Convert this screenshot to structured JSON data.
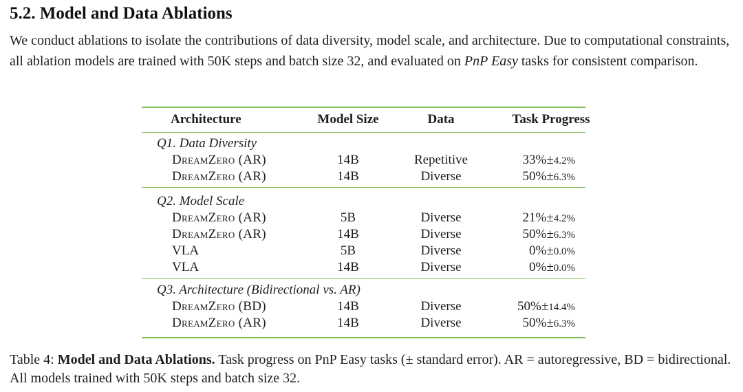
{
  "section": {
    "heading": "5.2. Model and Data Ablations"
  },
  "intro": {
    "text_before": "We conduct ablations to isolate the contributions of data diversity, model scale, and architecture. Due to computational constraints, all ablation models are trained with 50K steps and batch size 32, and evaluated on ",
    "italic_term": "PnP Easy",
    "text_after": " tasks for consistent comparison."
  },
  "table": {
    "headers": {
      "architecture": "Architecture",
      "model_size": "Model Size",
      "data": "Data",
      "task_progress": "Task Progress"
    },
    "groups": [
      {
        "title": "Q1. Data Diversity",
        "rows": [
          {
            "arch": "DreamZero (AR)",
            "size": "14B",
            "data": "Repetitive",
            "progress": "33%",
            "error": "4.2%"
          },
          {
            "arch": "DreamZero (AR)",
            "size": "14B",
            "data": "Diverse",
            "progress": "50%",
            "error": "6.3%"
          }
        ]
      },
      {
        "title": "Q2. Model Scale",
        "rows": [
          {
            "arch": "DreamZero (AR)",
            "size": "5B",
            "data": "Diverse",
            "progress": "21%",
            "error": "4.2%"
          },
          {
            "arch": "DreamZero (AR)",
            "size": "14B",
            "data": "Diverse",
            "progress": "50%",
            "error": "6.3%"
          },
          {
            "arch": "VLA",
            "size": "5B",
            "data": "Diverse",
            "progress": "0%",
            "error": "0.0%"
          },
          {
            "arch": "VLA",
            "size": "14B",
            "data": "Diverse",
            "progress": "0%",
            "error": "0.0%"
          }
        ]
      },
      {
        "title": "Q3. Architecture (Bidirectional vs. AR)",
        "rows": [
          {
            "arch": "DreamZero (BD)",
            "size": "14B",
            "data": "Diverse",
            "progress": "50%",
            "error": "14.4%"
          },
          {
            "arch": "DreamZero (AR)",
            "size": "14B",
            "data": "Diverse",
            "progress": "50%",
            "error": "6.3%"
          }
        ]
      }
    ],
    "pm_symbol": "±",
    "rule_color": "#7fbf55"
  },
  "caption": {
    "label": "Table 4:",
    "title": "Model and Data Ablations.",
    "text": "Task progress on PnP Easy tasks (± standard error). AR = autoregressive, BD = bidirectional. All models trained with 50K steps and batch size 32."
  }
}
